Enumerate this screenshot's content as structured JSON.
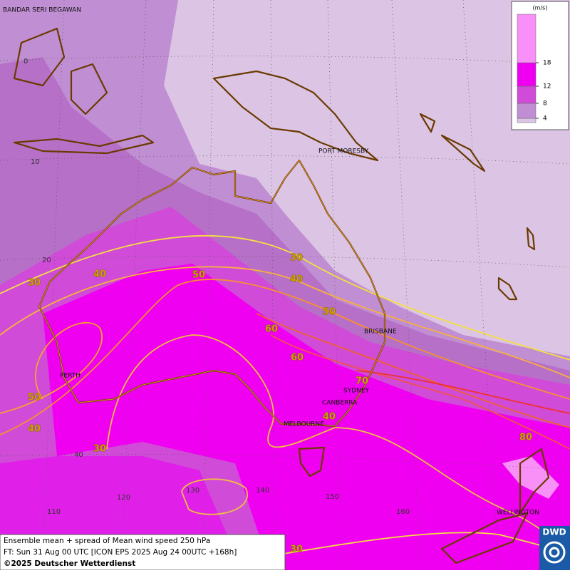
{
  "map": {
    "places": [
      "BANDAR SERI BEGAWAN",
      "PORT MORESBY",
      "BRISBANE",
      "PERTH",
      "SYDNEY",
      "CANBERRA",
      "MELBOURNE",
      "WELLINGTON"
    ],
    "latitude_labels": [
      "0",
      "10",
      "20",
      "40"
    ],
    "longitude_labels": [
      "110",
      "120",
      "130",
      "140",
      "150",
      "160"
    ],
    "contour_labels": [
      "30",
      "40",
      "50",
      "30",
      "40",
      "50",
      "60",
      "60",
      "70",
      "40",
      "50",
      "40",
      "30",
      "80",
      "30"
    ],
    "legend": {
      "unit": "(m/s)",
      "ticks": [
        4,
        8,
        12,
        18
      ],
      "colors": [
        "#dcc4e4",
        "#c08ed2",
        "#d04cd8",
        "#f000f0",
        "#f890f8"
      ]
    },
    "footer": {
      "line1": "Ensemble mean + spread of Mean wind speed 250 hPa",
      "line2": "FT: Sun 31 Aug 00 UTC [ICON EPS 2025 Aug 24 00UTC +168h]",
      "line3": "©2025 Deutscher Wetterdienst"
    },
    "logo": "DWD"
  }
}
